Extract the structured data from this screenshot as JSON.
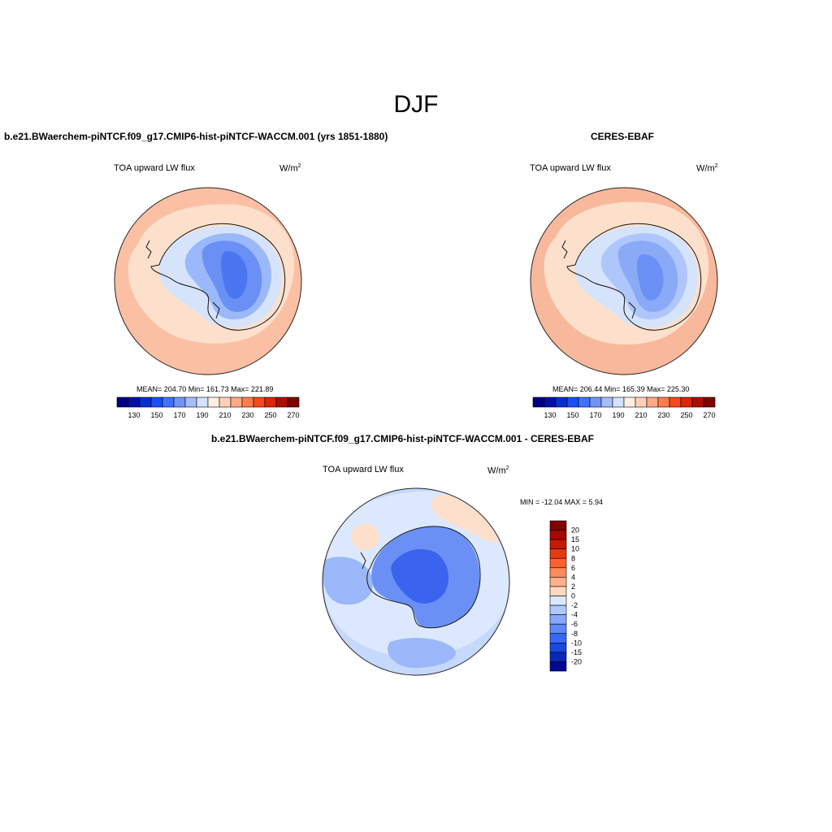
{
  "figure": {
    "title": "DJF"
  },
  "panels": [
    {
      "id": "model",
      "title": "b.e21.BWaerchem-piNTCF.f09_g17.CMIP6-hist-piNTCF-WACCM.001 (yrs 1851-1880)",
      "variable": "TOA upward LW flux",
      "units": "W/m",
      "units_exp": "2",
      "stats": "MEAN= 204.70  Min= 161.73  Max= 221.89"
    },
    {
      "id": "obs",
      "title": "CERES-EBAF",
      "variable": "TOA upward LW flux",
      "units": "W/m",
      "units_exp": "2",
      "stats": "MEAN= 206.44  Min= 165.39  Max= 225.30"
    },
    {
      "id": "diff",
      "title": "b.e21.BWaerchem-piNTCF.f09_g17.CMIP6-hist-piNTCF-WACCM.001 - CERES-EBAF",
      "variable": "TOA upward LW flux",
      "units": "W/m",
      "units_exp": "2",
      "stats": "MIN = -12.04 MAX =   5.94"
    }
  ],
  "colorbar_abs": {
    "colors": [
      "#00007f",
      "#0010a8",
      "#0830d0",
      "#1a50f0",
      "#4070ff",
      "#6e95ff",
      "#a3bdff",
      "#d2e2ff",
      "#fff0e0",
      "#ffd0b4",
      "#ffaa84",
      "#ff7c4c",
      "#f44a1c",
      "#d82808",
      "#aa1000",
      "#800000"
    ],
    "tick_labels": [
      "130",
      "150",
      "170",
      "190",
      "210",
      "230",
      "250",
      "270"
    ]
  },
  "colorbar_diff": {
    "colors": [
      "#800000",
      "#a50800",
      "#c81800",
      "#e83a10",
      "#ff6030",
      "#ff8a5c",
      "#ffb08a",
      "#ffd8c0",
      "#dce8ff",
      "#b0c8ff",
      "#88a8ff",
      "#6088ff",
      "#3868f8",
      "#1848e0",
      "#0828b8",
      "#000890"
    ],
    "tick_labels": [
      "20",
      "15",
      "10",
      "8",
      "6",
      "4",
      "2",
      "0",
      "-2",
      "-4",
      "-6",
      "-8",
      "-10",
      "-15",
      "-20"
    ]
  },
  "maps": {
    "model": {
      "ocean": "#fbc0a4",
      "ring": "#fde0cc",
      "coast_band": "#d6e4fb",
      "interior_mid": "#9ab8fa",
      "interior_core": "#6a90f6",
      "interior_min": "#4a76f2"
    },
    "obs": {
      "ocean": "#f8b89c",
      "ring": "#fde0cc",
      "coast_band": "#d6e4fb",
      "interior_mid": "#aec6fb",
      "interior_core": "#8aaaf8",
      "interior_min": "#6a90f6"
    },
    "diff": {
      "ocean": "#c6d8fb",
      "ring": "#dce8fd",
      "warm": "#fde0cc",
      "cool": "#9ab8fa",
      "land": "#6a90f6",
      "land_core": "#3a64ee"
    }
  }
}
